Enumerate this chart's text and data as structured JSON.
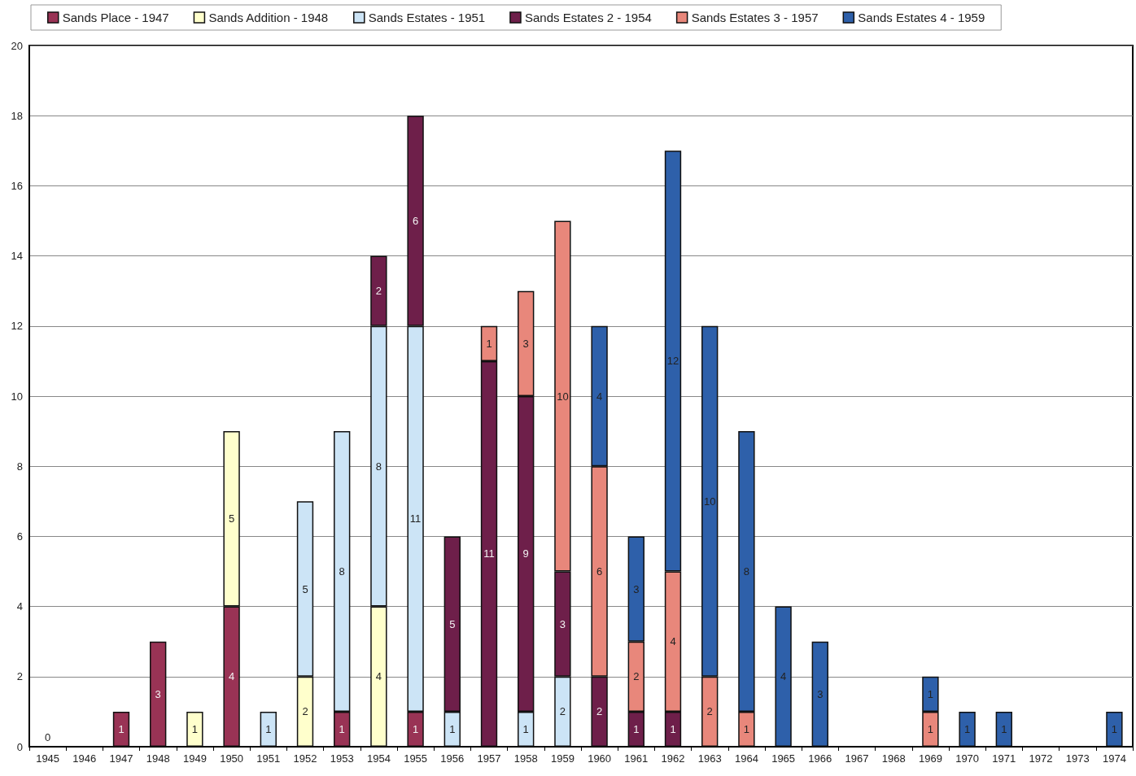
{
  "chart_data": {
    "type": "bar",
    "stacked": true,
    "categories": [
      "1945",
      "1946",
      "1947",
      "1948",
      "1949",
      "1950",
      "1951",
      "1952",
      "1953",
      "1954",
      "1955",
      "1956",
      "1957",
      "1958",
      "1959",
      "1960",
      "1961",
      "1962",
      "1963",
      "1964",
      "1965",
      "1966",
      "1967",
      "1968",
      "1969",
      "1970",
      "1971",
      "1972",
      "1973",
      "1974"
    ],
    "series": [
      {
        "name": "Sands Place - 1947",
        "color": "#993355",
        "values": [
          0,
          0,
          1,
          3,
          0,
          4,
          0,
          0,
          1,
          0,
          1,
          0,
          0,
          0,
          0,
          0,
          0,
          0,
          0,
          0,
          0,
          0,
          0,
          0,
          0,
          0,
          0,
          0,
          0,
          0
        ],
        "value_labels": [
          "0",
          null,
          "1",
          "3",
          null,
          "4",
          null,
          null,
          "1",
          null,
          "1",
          null,
          null,
          null,
          null,
          null,
          null,
          null,
          null,
          null,
          null,
          null,
          null,
          null,
          null,
          null,
          null,
          null,
          null,
          null
        ]
      },
      {
        "name": "Sands Addition - 1948",
        "color": "#ffffcc",
        "values": [
          0,
          0,
          0,
          0,
          1,
          5,
          0,
          2,
          0,
          4,
          0,
          0,
          0,
          0,
          0,
          0,
          0,
          0,
          0,
          0,
          0,
          0,
          0,
          0,
          0,
          0,
          0,
          0,
          0,
          0
        ],
        "value_labels": [
          null,
          null,
          null,
          null,
          "1",
          "5",
          null,
          "2",
          null,
          "4",
          null,
          null,
          null,
          null,
          null,
          null,
          null,
          null,
          null,
          null,
          null,
          null,
          null,
          null,
          null,
          null,
          null,
          null,
          null,
          null
        ]
      },
      {
        "name": "Sands Estates - 1951",
        "color": "#cce4f6",
        "values": [
          0,
          0,
          0,
          0,
          0,
          0,
          1,
          5,
          8,
          8,
          11,
          1,
          0,
          1,
          2,
          0,
          0,
          0,
          0,
          0,
          0,
          0,
          0,
          0,
          0,
          0,
          0,
          0,
          0,
          0
        ],
        "value_labels": [
          null,
          null,
          null,
          null,
          null,
          null,
          "1",
          "5",
          "8",
          "8",
          "11",
          "1",
          null,
          "1",
          "2",
          null,
          null,
          null,
          null,
          null,
          null,
          null,
          null,
          null,
          null,
          null,
          null,
          null,
          null,
          null
        ]
      },
      {
        "name": "Sands Estates 2 - 1954",
        "color": "#6e1f4a",
        "values": [
          0,
          0,
          0,
          0,
          0,
          0,
          0,
          0,
          0,
          2,
          6,
          5,
          11,
          9,
          3,
          2,
          1,
          1,
          0,
          0,
          0,
          0,
          0,
          0,
          0,
          0,
          0,
          0,
          0,
          0
        ],
        "value_labels": [
          null,
          null,
          null,
          null,
          null,
          null,
          null,
          null,
          null,
          "2",
          "6",
          "5",
          "11",
          "9",
          "3",
          "2",
          "1",
          "1",
          null,
          null,
          null,
          null,
          null,
          null,
          null,
          null,
          null,
          null,
          null,
          null
        ]
      },
      {
        "name": "Sands Estates 3 - 1957",
        "color": "#e8877b",
        "values": [
          0,
          0,
          0,
          0,
          0,
          0,
          0,
          0,
          0,
          0,
          0,
          0,
          1,
          3,
          10,
          6,
          2,
          4,
          2,
          1,
          0,
          0,
          0,
          0,
          1,
          0,
          0,
          0,
          0,
          0
        ],
        "value_labels": [
          null,
          null,
          null,
          null,
          null,
          null,
          null,
          null,
          null,
          null,
          null,
          null,
          "1",
          "3",
          "10",
          "6",
          "2",
          "4",
          "2",
          "1",
          null,
          null,
          null,
          null,
          "1",
          null,
          null,
          null,
          null,
          null
        ]
      },
      {
        "name": "Sands Estates 4 - 1959",
        "color": "#2e60aa",
        "values": [
          0,
          0,
          0,
          0,
          0,
          0,
          0,
          0,
          0,
          0,
          0,
          0,
          0,
          0,
          0,
          4,
          3,
          12,
          10,
          8,
          4,
          3,
          0,
          0,
          1,
          1,
          1,
          0,
          0,
          1
        ],
        "value_labels": [
          null,
          null,
          null,
          null,
          null,
          null,
          null,
          null,
          null,
          null,
          null,
          null,
          null,
          null,
          null,
          "4",
          "3",
          "12",
          "10",
          "8",
          "4",
          "3",
          null,
          null,
          "1",
          "1",
          "1",
          null,
          null,
          "1"
        ]
      }
    ],
    "ylim": [
      0,
      20
    ],
    "yticks": [
      0,
      2,
      4,
      6,
      8,
      10,
      12,
      14,
      16,
      18,
      20
    ],
    "grid": "y",
    "legend": "top"
  }
}
